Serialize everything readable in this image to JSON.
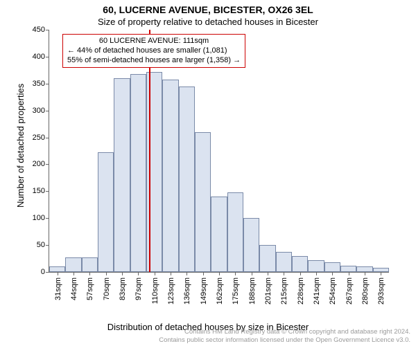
{
  "title": "60, LUCERNE AVENUE, BICESTER, OX26 3EL",
  "subtitle": "Size of property relative to detached houses in Bicester",
  "histogram": {
    "type": "histogram",
    "ylabel": "Number of detached properties",
    "xlabel": "Distribution of detached houses by size in Bicester",
    "ylim": [
      0,
      450
    ],
    "ytick_step": 50,
    "x_categories": [
      "31sqm",
      "44sqm",
      "57sqm",
      "70sqm",
      "83sqm",
      "97sqm",
      "110sqm",
      "123sqm",
      "136sqm",
      "149sqm",
      "162sqm",
      "175sqm",
      "188sqm",
      "201sqm",
      "215sqm",
      "228sqm",
      "241sqm",
      "254sqm",
      "267sqm",
      "280sqm",
      "293sqm"
    ],
    "values": [
      10,
      27,
      27,
      222,
      360,
      368,
      371,
      358,
      345,
      260,
      140,
      148,
      100,
      50,
      37,
      30,
      22,
      18,
      12,
      10,
      8
    ],
    "bar_fill": "#dbe3f0",
    "bar_stroke": "#7a8aa8",
    "background_color": "#ffffff",
    "axis_color": "#666666",
    "label_fontsize": 13,
    "tick_fontsize": 11,
    "title_fontsize": 14
  },
  "marker": {
    "value_sqm": 111,
    "line_color": "#cc0000",
    "line1": "60 LUCERNE AVENUE: 111sqm",
    "line2": "← 44% of detached houses are smaller (1,081)",
    "line3": "55% of semi-detached houses are larger (1,358) →"
  },
  "footer": {
    "line1": "Contains HM Land Registry data © Crown copyright and database right 2024.",
    "line2": "Contains public sector information licensed under the Open Government Licence v3.0."
  }
}
